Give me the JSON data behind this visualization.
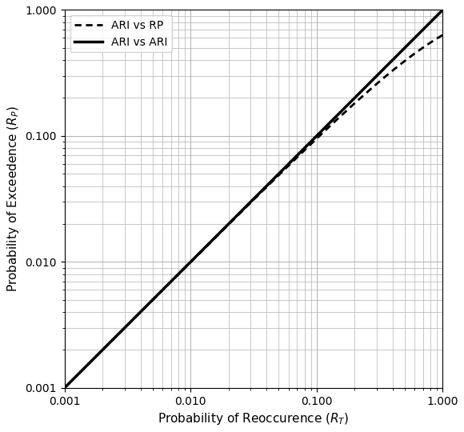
{
  "title": "",
  "xlabel": "Probability of Reoccurence ($R_T$)",
  "ylabel": "Probability of Exceedence ($R_P$)",
  "xlim": [
    0.001,
    1.0
  ],
  "ylim": [
    0.001,
    1.0
  ],
  "legend_labels": [
    "ARI vs RP",
    "ARI vs ARI"
  ],
  "legend_linestyles": [
    "dotted",
    "solid"
  ],
  "line_color": "black",
  "linewidth_solid": 2.5,
  "linewidth_dotted": 2.0,
  "grid_color": "#b0b0b0",
  "background_color": "#ffffff",
  "legend_fontsize": 10,
  "axis_label_fontsize": 11
}
